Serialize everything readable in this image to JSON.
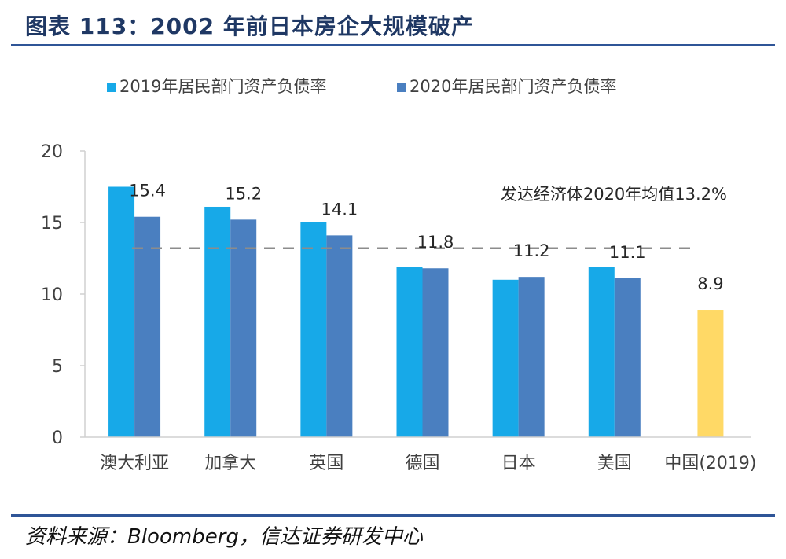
{
  "header": {
    "title": "图表 113：2002 年前日本房企大规模破产"
  },
  "footer": {
    "source": "资料来源：Bloomberg，信达证券研发中心"
  },
  "chart_data": {
    "type": "bar",
    "categories": [
      "澳大利亚",
      "加拿大",
      "英国",
      "德国",
      "日本",
      "美国",
      "中国(2019)"
    ],
    "series": [
      {
        "name": "2019年居民部门资产负债率",
        "color": "#17a9e8",
        "values": [
          17.5,
          16.1,
          15.0,
          11.9,
          11.0,
          11.9,
          null
        ]
      },
      {
        "name": "2020年居民部门资产负债率",
        "color": "#4a7fc0",
        "values": [
          15.4,
          15.2,
          14.1,
          11.8,
          11.2,
          11.1,
          null
        ],
        "labels": [
          "15.4",
          "15.2",
          "14.1",
          "11.8",
          "11.2",
          "11.1",
          null
        ]
      },
      {
        "name": "中国(2019)",
        "color": "#ffd966",
        "values": [
          null,
          null,
          null,
          null,
          null,
          null,
          8.9
        ],
        "labels": [
          null,
          null,
          null,
          null,
          null,
          null,
          "8.9"
        ]
      }
    ],
    "reference_line": {
      "value": 13.2,
      "label": "发达经济体2020年均值13.2%",
      "style": "dashed",
      "color": "#8c8c8c"
    },
    "ylim": [
      0,
      20
    ],
    "yticks": [
      0,
      5,
      10,
      15,
      20
    ],
    "legend_position": "top",
    "grid": false,
    "xlabel": "",
    "ylabel": ""
  }
}
